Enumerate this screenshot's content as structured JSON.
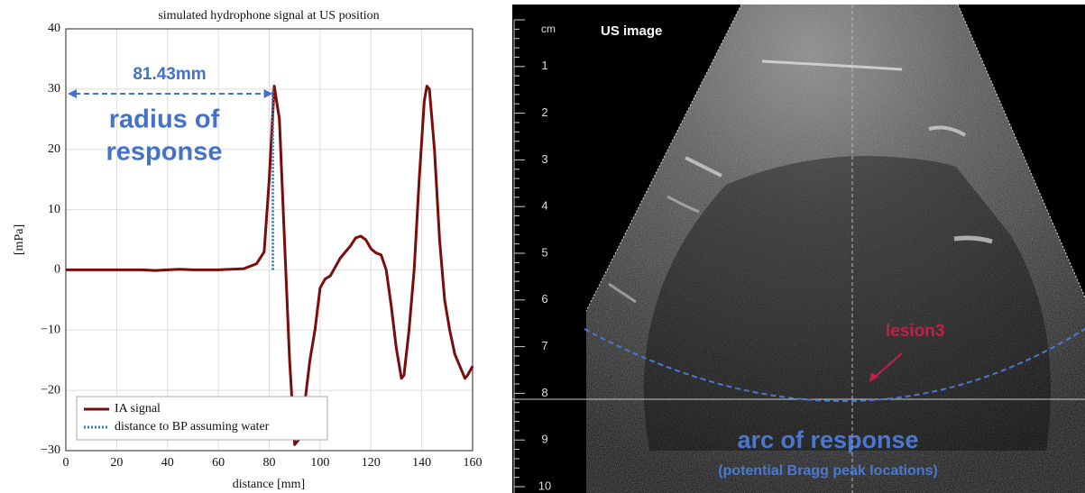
{
  "chart_data": {
    "type": "line",
    "title": "simulated hydrophone signal at US position",
    "xlabel": "distance [mm]",
    "ylabel": "[mPa]",
    "xlim": [
      0,
      160
    ],
    "ylim": [
      -30,
      40
    ],
    "xticks": [
      0,
      20,
      40,
      60,
      80,
      100,
      120,
      140,
      160
    ],
    "yticks": [
      {
        "value": -30,
        "label": "−30"
      },
      {
        "value": -20,
        "label": "−20"
      },
      {
        "value": -10,
        "label": "−10"
      },
      0,
      10,
      20,
      30,
      40
    ],
    "grid": true,
    "legend": "lower left",
    "series": [
      {
        "name": "IA signal",
        "color": "#7b0c0c",
        "style": "solid",
        "x": [
          0,
          10,
          20,
          30,
          35,
          40,
          45,
          50,
          60,
          70,
          75,
          78,
          80,
          82,
          84,
          86,
          88,
          90,
          92,
          94,
          96,
          98,
          100,
          102,
          104,
          106,
          108,
          110,
          112,
          114,
          116,
          118,
          120,
          122,
          124,
          126,
          128,
          130,
          132,
          133,
          135,
          137,
          139,
          141,
          142,
          143,
          145,
          147,
          149,
          151,
          153,
          155,
          157,
          158,
          160
        ],
        "values": [
          0,
          0,
          0,
          0,
          -0.1,
          0,
          0.1,
          0,
          0,
          0.2,
          1,
          3,
          15,
          30.5,
          25,
          5,
          -15,
          -29,
          -28,
          -22,
          -15,
          -10,
          -3,
          -1.5,
          -1,
          0.5,
          2,
          3,
          4,
          5.3,
          5.6,
          5,
          3.5,
          2.8,
          2.5,
          0,
          -6,
          -13,
          -18,
          -17.5,
          -10,
          0,
          15,
          28,
          30.5,
          30,
          20,
          5,
          -5,
          -10,
          -14,
          -16,
          -18,
          -17.5,
          -16
        ]
      },
      {
        "name": "distance to BP assuming water",
        "color": "#2a7fc9",
        "style": "dotted",
        "x": [
          81.43,
          81.43
        ],
        "values": [
          0,
          30
        ]
      }
    ],
    "annotations": {
      "distance": "81.43mm",
      "radius": "radius of",
      "response": "response"
    }
  },
  "us_image": {
    "unit": "cm",
    "title": "US image",
    "depth_labels": [
      "1",
      "2",
      "3",
      "4",
      "5",
      "6",
      "7",
      "8",
      "9",
      "10"
    ],
    "lesion_label": "lesion3",
    "arc_label": "arc of response",
    "arc_sublabel": "(potential Bragg peak locations)"
  }
}
